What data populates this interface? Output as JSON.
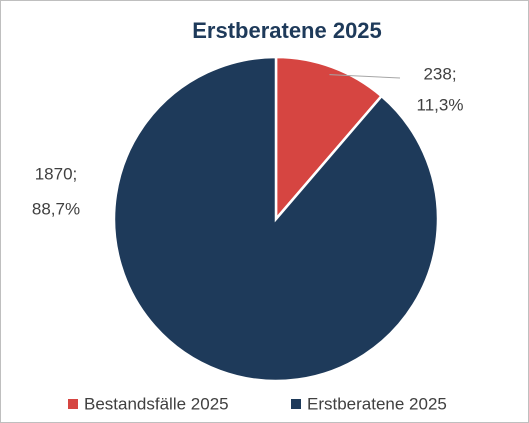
{
  "chart_data": {
    "type": "pie",
    "title": "Erstberatene 2025",
    "categories": [
      "Bestandsfälle 2025",
      "Erstberatene 2025"
    ],
    "values": [
      238,
      1870
    ],
    "value_labels": [
      "238;",
      "1870;"
    ],
    "percent_labels": [
      "11,3%",
      "88,7%"
    ],
    "colors": [
      "#d64541",
      "#1e3a5a"
    ],
    "legend": "bottom"
  }
}
